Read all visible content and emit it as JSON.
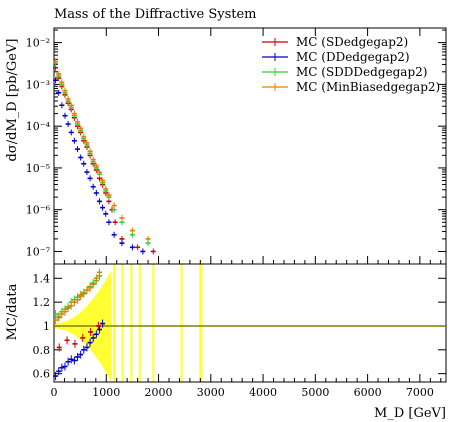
{
  "chart_data": {
    "type": "scatter",
    "title": "Mass of the Diffractive System",
    "xlabel": "M_D [GeV]",
    "ylabel_top": "dσ/dM_D [pb/GeV]",
    "ylabel_bottom": "MC/data",
    "xlim": [
      0,
      7500
    ],
    "ylim_top_log10": [
      -7.3,
      -1.65
    ],
    "ylim_bottom": [
      0.53,
      1.52
    ],
    "x_ticks": [
      0,
      1000,
      2000,
      3000,
      4000,
      5000,
      6000,
      7000
    ],
    "y_ticks_top": [
      "10⁻²",
      "10⁻³",
      "10⁻⁴",
      "10⁻⁵",
      "10⁻⁶",
      "10⁻⁷"
    ],
    "y_ticks_top_exp": [
      -2,
      -3,
      -4,
      -5,
      -6,
      -7
    ],
    "y_ticks_bottom": [
      0.6,
      0.8,
      1,
      1.2,
      1.4
    ],
    "legend_position": "top-right",
    "series": [
      {
        "name": "MC (SDedgegap2)",
        "color": "#cc0000",
        "points": [
          [
            30,
            -2.6
          ],
          [
            90,
            -2.85
          ],
          [
            150,
            -3.05
          ],
          [
            210,
            -3.25
          ],
          [
            270,
            -3.45
          ],
          [
            330,
            -3.6
          ],
          [
            390,
            -3.8
          ],
          [
            450,
            -4.0
          ],
          [
            510,
            -4.15
          ],
          [
            570,
            -4.35
          ],
          [
            630,
            -4.5
          ],
          [
            690,
            -4.7
          ],
          [
            750,
            -4.9
          ],
          [
            810,
            -5.05
          ],
          [
            870,
            -5.25
          ],
          [
            930,
            -5.4
          ],
          [
            990,
            -5.6
          ],
          [
            1050,
            -5.8
          ],
          [
            1110,
            -6.0
          ],
          [
            1170,
            -6.3
          ],
          [
            1300,
            -6.7
          ],
          [
            1600,
            -6.9
          ],
          [
            1900,
            -7.0
          ]
        ]
      },
      {
        "name": "MC (DDedgegap2)",
        "color": "#0000cc",
        "points": [
          [
            30,
            -2.9
          ],
          [
            90,
            -3.2
          ],
          [
            150,
            -3.5
          ],
          [
            210,
            -3.75
          ],
          [
            270,
            -3.95
          ],
          [
            330,
            -4.15
          ],
          [
            390,
            -4.35
          ],
          [
            450,
            -4.55
          ],
          [
            510,
            -4.75
          ],
          [
            570,
            -4.9
          ],
          [
            630,
            -5.1
          ],
          [
            690,
            -5.25
          ],
          [
            750,
            -5.45
          ],
          [
            810,
            -5.6
          ],
          [
            870,
            -5.8
          ],
          [
            930,
            -5.95
          ],
          [
            990,
            -6.1
          ],
          [
            1050,
            -6.3
          ],
          [
            1150,
            -6.6
          ],
          [
            1300,
            -6.8
          ],
          [
            1500,
            -6.9
          ],
          [
            1700,
            -7.0
          ]
        ]
      },
      {
        "name": "MC (SDDDedgegap2)",
        "color": "#33cc33",
        "points": [
          [
            30,
            -2.5
          ],
          [
            90,
            -2.8
          ],
          [
            150,
            -3.0
          ],
          [
            210,
            -3.2
          ],
          [
            270,
            -3.4
          ],
          [
            330,
            -3.55
          ],
          [
            390,
            -3.75
          ],
          [
            450,
            -3.95
          ],
          [
            510,
            -4.1
          ],
          [
            570,
            -4.3
          ],
          [
            630,
            -4.45
          ],
          [
            690,
            -4.65
          ],
          [
            750,
            -4.85
          ],
          [
            810,
            -5.0
          ],
          [
            870,
            -5.15
          ],
          [
            930,
            -5.35
          ],
          [
            990,
            -5.55
          ],
          [
            1050,
            -5.7
          ],
          [
            1150,
            -6.0
          ],
          [
            1300,
            -6.3
          ],
          [
            1500,
            -6.6
          ],
          [
            1800,
            -6.8
          ]
        ]
      },
      {
        "name": "MC (MinBiasedgegap2)",
        "color": "#e08000",
        "points": [
          [
            30,
            -2.45
          ],
          [
            90,
            -2.75
          ],
          [
            150,
            -2.95
          ],
          [
            210,
            -3.15
          ],
          [
            270,
            -3.35
          ],
          [
            330,
            -3.5
          ],
          [
            390,
            -3.7
          ],
          [
            450,
            -3.9
          ],
          [
            510,
            -4.05
          ],
          [
            570,
            -4.25
          ],
          [
            630,
            -4.4
          ],
          [
            690,
            -4.6
          ],
          [
            750,
            -4.8
          ],
          [
            810,
            -4.95
          ],
          [
            870,
            -5.1
          ],
          [
            930,
            -5.3
          ],
          [
            990,
            -5.5
          ],
          [
            1050,
            -5.65
          ],
          [
            1150,
            -5.9
          ],
          [
            1300,
            -6.2
          ],
          [
            1500,
            -6.5
          ],
          [
            1800,
            -6.7
          ]
        ]
      }
    ],
    "ratio_series": [
      {
        "name": "MC (SDedgegap2)",
        "color": "#cc0000",
        "points": [
          [
            100,
            0.82
          ],
          [
            250,
            0.88
          ],
          [
            400,
            0.85
          ],
          [
            550,
            0.9
          ],
          [
            700,
            0.95
          ],
          [
            850,
            1.0
          ]
        ]
      },
      {
        "name": "MC (DDedgegap2)",
        "color": "#0000cc",
        "points": [
          [
            30,
            0.58
          ],
          [
            90,
            0.62
          ],
          [
            150,
            0.65
          ],
          [
            210,
            0.66
          ],
          [
            270,
            0.7
          ],
          [
            330,
            0.72
          ],
          [
            390,
            0.71
          ],
          [
            450,
            0.74
          ],
          [
            510,
            0.76
          ],
          [
            570,
            0.8
          ],
          [
            630,
            0.82
          ],
          [
            690,
            0.86
          ],
          [
            750,
            0.9
          ],
          [
            810,
            0.93
          ],
          [
            870,
            0.97
          ],
          [
            930,
            1.02
          ]
        ]
      },
      {
        "name": "MC (SDDDedgegap2)",
        "color": "#33cc33",
        "points": [
          [
            30,
            1.1
          ],
          [
            90,
            1.08
          ],
          [
            150,
            1.12
          ],
          [
            210,
            1.14
          ],
          [
            270,
            1.16
          ],
          [
            330,
            1.2
          ],
          [
            390,
            1.22
          ],
          [
            450,
            1.24
          ],
          [
            510,
            1.26
          ],
          [
            570,
            1.28
          ],
          [
            630,
            1.3
          ],
          [
            690,
            1.33
          ],
          [
            750,
            1.36
          ],
          [
            810,
            1.38
          ],
          [
            870,
            1.42
          ]
        ]
      },
      {
        "name": "MC (MinBiasedgegap2)",
        "color": "#e08000",
        "points": [
          [
            30,
            1.05
          ],
          [
            90,
            1.07
          ],
          [
            150,
            1.1
          ],
          [
            210,
            1.12
          ],
          [
            270,
            1.15
          ],
          [
            330,
            1.17
          ],
          [
            390,
            1.2
          ],
          [
            450,
            1.22
          ],
          [
            510,
            1.25
          ],
          [
            570,
            1.27
          ],
          [
            630,
            1.3
          ],
          [
            690,
            1.32
          ],
          [
            750,
            1.35
          ],
          [
            810,
            1.4
          ],
          [
            870,
            1.45
          ]
        ]
      }
    ]
  }
}
